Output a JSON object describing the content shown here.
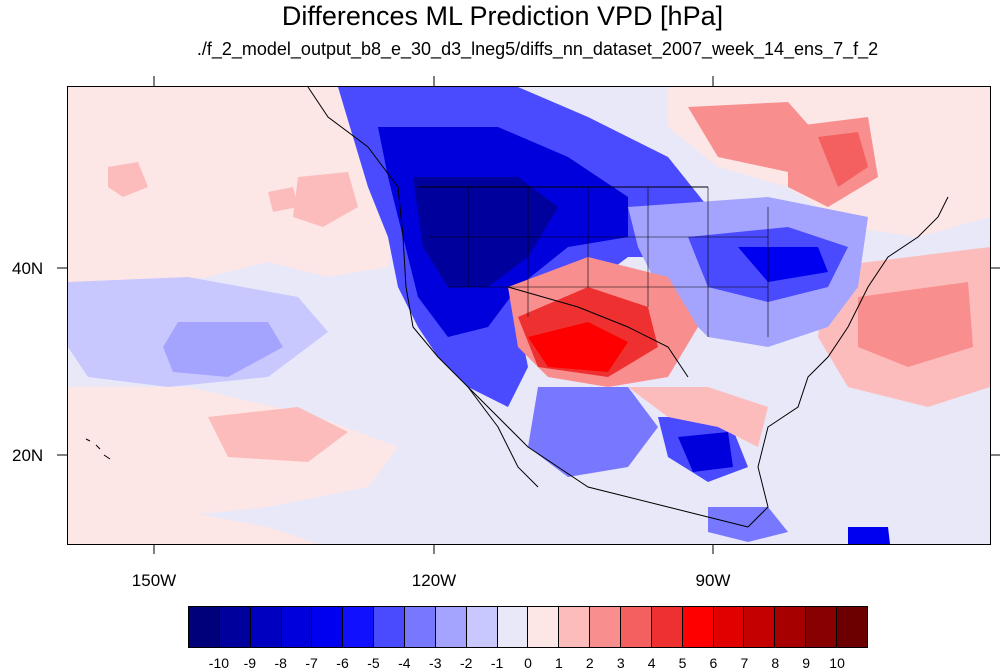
{
  "title": "Differences ML Prediction VPD [hPa]",
  "subtitle": "./f_2_model_output_b8_e_30_d3_lneg5/diffs_nn_dataset_2007_week_14_ens_7_f_2",
  "map": {
    "lat_ticks": [
      "40N",
      "20N"
    ],
    "lon_ticks": [
      "150W",
      "120W",
      "90W"
    ]
  },
  "colorbar": {
    "labels": [
      "-10",
      "-9",
      "-8",
      "-7",
      "-6",
      "-5",
      "-4",
      "-3",
      "-2",
      "-1",
      "0",
      "1",
      "2",
      "3",
      "4",
      "5",
      "6",
      "7",
      "8",
      "9",
      "10"
    ],
    "colors": [
      "#00007a",
      "#00009c",
      "#0000c0",
      "#0000dc",
      "#0000f0",
      "#1010ff",
      "#4a4aff",
      "#7878ff",
      "#a4a4ff",
      "#c8c8ff",
      "#e8e8f8",
      "#fde6e6",
      "#fcbcbc",
      "#f98e8e",
      "#f46060",
      "#ef3030",
      "#ff0000",
      "#e00000",
      "#c40000",
      "#a60000",
      "#880000",
      "#6c0000"
    ]
  }
}
